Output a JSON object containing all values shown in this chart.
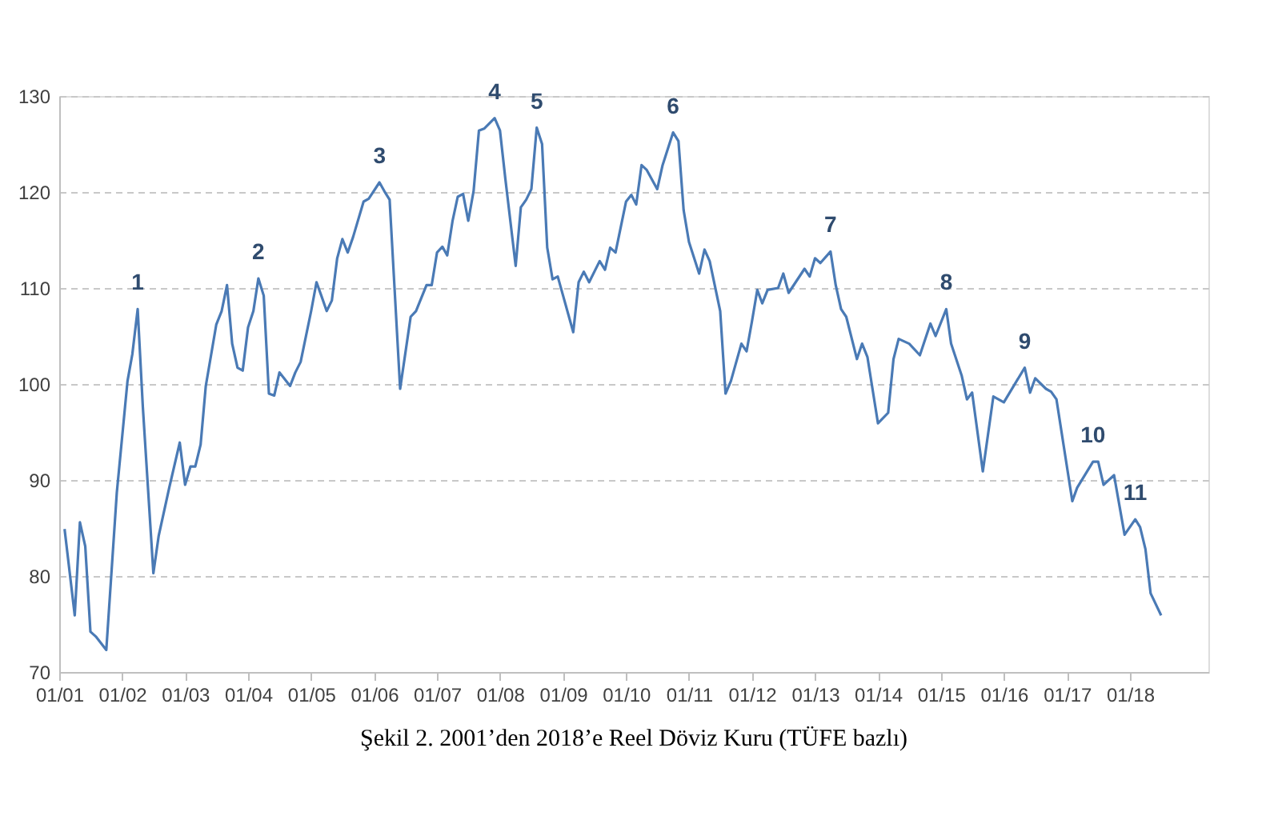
{
  "chart_data": {
    "type": "line",
    "title": "Şekil 2. 2001’den 2018’e Reel Döviz Kuru (TÜFE bazlı)",
    "x": [
      "2001-02",
      "2001-04",
      "2001-05",
      "2001-06",
      "2001-07",
      "2001-08",
      "2001-10",
      "2001-12",
      "2002-02",
      "2002-03",
      "2002-04",
      "2002-05",
      "2002-07",
      "2002-08",
      "2002-10",
      "2002-12",
      "2003-01",
      "2003-02",
      "2003-03",
      "2003-04",
      "2003-05",
      "2003-07",
      "2003-08",
      "2003-09",
      "2003-10",
      "2003-11",
      "2003-12",
      "2004-01",
      "2004-02",
      "2004-03",
      "2004-04",
      "2004-05",
      "2004-06",
      "2004-07",
      "2004-09",
      "2004-10",
      "2004-11",
      "2005-01",
      "2005-02",
      "2005-03",
      "2005-04",
      "2005-05",
      "2005-06",
      "2005-07",
      "2005-08",
      "2005-09",
      "2005-11",
      "2005-12",
      "2006-02",
      "2006-03",
      "2006-04",
      "2006-06",
      "2006-08",
      "2006-09",
      "2006-11",
      "2006-12",
      "2007-01",
      "2007-02",
      "2007-03",
      "2007-04",
      "2007-05",
      "2007-06",
      "2007-07",
      "2007-08",
      "2007-09",
      "2007-10",
      "2007-12",
      "2008-01",
      "2008-02",
      "2008-04",
      "2008-05",
      "2008-06",
      "2008-07",
      "2008-08",
      "2008-09",
      "2008-10",
      "2008-11",
      "2008-12",
      "2009-01",
      "2009-03",
      "2009-04",
      "2009-05",
      "2009-06",
      "2009-08",
      "2009-09",
      "2009-10",
      "2009-11",
      "2010-01",
      "2010-02",
      "2010-03",
      "2010-04",
      "2010-05",
      "2010-07",
      "2010-08",
      "2010-10",
      "2010-11",
      "2010-12",
      "2011-01",
      "2011-03",
      "2011-04",
      "2011-05",
      "2011-07",
      "2011-08",
      "2011-09",
      "2011-11",
      "2011-12",
      "2012-01",
      "2012-02",
      "2012-03",
      "2012-04",
      "2012-06",
      "2012-07",
      "2012-08",
      "2012-11",
      "2012-12",
      "2013-01",
      "2013-02",
      "2013-04",
      "2013-05",
      "2013-06",
      "2013-07",
      "2013-09",
      "2013-10",
      "2013-11",
      "2014-01",
      "2014-03",
      "2014-04",
      "2014-05",
      "2014-07",
      "2014-09",
      "2014-11",
      "2014-12",
      "2015-02",
      "2015-03",
      "2015-05",
      "2015-06",
      "2015-07",
      "2015-09",
      "2015-11",
      "2016-01",
      "2016-05",
      "2016-06",
      "2016-07",
      "2016-09",
      "2016-10",
      "2016-11",
      "2017-02",
      "2017-03",
      "2017-06",
      "2017-07",
      "2017-08",
      "2017-10",
      "2017-12",
      "2018-02",
      "2018-03",
      "2018-04",
      "2018-05",
      "2018-07"
    ],
    "series": [
      {
        "color": "#4a7ab5",
        "values": [
          84.9,
          75.9,
          85.6,
          83.1,
          74.2,
          73.7,
          72.3,
          88.7,
          100.3,
          103.1,
          107.8,
          97.6,
          80.3,
          84.2,
          89.2,
          93.9,
          89.5,
          91.4,
          91.4,
          93.7,
          99.8,
          106.2,
          107.6,
          110.3,
          104.2,
          101.7,
          101.4,
          105.9,
          107.6,
          111,
          109.2,
          99,
          98.8,
          101.2,
          99.8,
          101.2,
          102.3,
          107.6,
          110.6,
          109.2,
          107.6,
          108.7,
          113.1,
          115.1,
          113.7,
          115.3,
          119,
          119.3,
          121,
          120.1,
          119.2,
          99.5,
          107,
          107.6,
          110.3,
          110.3,
          113.7,
          114.3,
          113.4,
          117,
          119.5,
          119.8,
          117,
          120.1,
          126.4,
          126.6,
          127.7,
          126.4,
          121.4,
          112.3,
          118.4,
          119.2,
          120.3,
          126.7,
          125,
          114.2,
          110.9,
          111.2,
          109.2,
          105.4,
          110.6,
          111.7,
          110.6,
          112.8,
          111.9,
          114.2,
          113.7,
          119,
          119.7,
          118.7,
          122.8,
          122.3,
          120.3,
          122.8,
          126.2,
          125.3,
          118.1,
          114.8,
          111.5,
          114,
          112.8,
          107.6,
          99,
          100.3,
          104.2,
          103.4,
          106.5,
          109.8,
          108.4,
          109.8,
          110,
          111.5,
          109.5,
          112,
          111.2,
          113.1,
          112.6,
          113.8,
          110.3,
          107.8,
          107,
          102.6,
          104.2,
          102.8,
          95.9,
          97,
          102.6,
          104.7,
          104.2,
          103,
          106.3,
          105,
          107.8,
          104.2,
          100.9,
          98.4,
          99.1,
          90.9,
          98.7,
          98.1,
          101.7,
          99.1,
          100.6,
          99.5,
          99.2,
          98.4,
          87.8,
          89.2,
          91.9,
          91.9,
          89.5,
          90.5,
          84.3,
          85.9,
          85.1,
          82.8,
          78.2,
          75.9
        ]
      }
    ],
    "xlim": [
      "2001-01",
      "2019-04"
    ],
    "xticks": [
      {
        "value": "2001-01",
        "label": "01/01"
      },
      {
        "value": "2002-01",
        "label": "01/02"
      },
      {
        "value": "2003-01",
        "label": "01/03"
      },
      {
        "value": "2004-01",
        "label": "01/04"
      },
      {
        "value": "2005-01",
        "label": "01/05"
      },
      {
        "value": "2006-01",
        "label": "01/06"
      },
      {
        "value": "2007-01",
        "label": "01/07"
      },
      {
        "value": "2008-01",
        "label": "01/08"
      },
      {
        "value": "2009-01",
        "label": "01/09"
      },
      {
        "value": "2010-01",
        "label": "01/10"
      },
      {
        "value": "2011-01",
        "label": "01/11"
      },
      {
        "value": "2012-01",
        "label": "01/12"
      },
      {
        "value": "2013-01",
        "label": "01/13"
      },
      {
        "value": "2014-01",
        "label": "01/14"
      },
      {
        "value": "2015-01",
        "label": "01/15"
      },
      {
        "value": "2016-01",
        "label": "01/16"
      },
      {
        "value": "2017-01",
        "label": "01/17"
      },
      {
        "value": "2018-01",
        "label": "01/18"
      }
    ],
    "ylim": [
      70,
      130
    ],
    "yticks": [
      70,
      80,
      90,
      100,
      110,
      120,
      130
    ],
    "grid": "y",
    "annotations": [
      {
        "text": "1",
        "x": "2002-04",
        "y": 107.8
      },
      {
        "text": "2",
        "x": "2004-03",
        "y": 111
      },
      {
        "text": "3",
        "x": "2006-02",
        "y": 121
      },
      {
        "text": "4",
        "x": "2007-12",
        "y": 127.7
      },
      {
        "text": "5",
        "x": "2008-08",
        "y": 126.7
      },
      {
        "text": "6",
        "x": "2010-10",
        "y": 126.2
      },
      {
        "text": "7",
        "x": "2013-04",
        "y": 113.8
      },
      {
        "text": "8",
        "x": "2015-02",
        "y": 107.8
      },
      {
        "text": "9",
        "x": "2016-05",
        "y": 101.7
      },
      {
        "text": "10",
        "x": "2017-06",
        "y": 91.9
      },
      {
        "text": "11",
        "x": "2018-02",
        "y": 85.9
      }
    ]
  }
}
